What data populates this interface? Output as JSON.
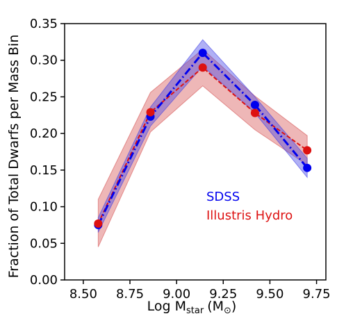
{
  "chart_data": {
    "type": "line",
    "title": "",
    "xlabel": "Log M",
    "xlabel_sub": "star",
    "xlabel_unit": "(M",
    "xlabel_unit_sub": "⊙",
    "xlabel_unit_close": ")",
    "ylabel": "Fraction of Total Dwarfs per Mass Bin",
    "xlim": [
      8.4,
      9.8
    ],
    "ylim": [
      0.0,
      0.35
    ],
    "xticks": [
      "8.50",
      "8.75",
      "9.00",
      "9.25",
      "9.50",
      "9.75"
    ],
    "yticks": [
      "0.00",
      "0.05",
      "0.10",
      "0.15",
      "0.20",
      "0.25",
      "0.30",
      "0.35"
    ],
    "grid": false,
    "legend_position": "lower-right, inside plot",
    "series": [
      {
        "name": "SDSS",
        "color": "#0000ee",
        "band_color": "#3a3ae6",
        "line_style": "dash-dot",
        "x": [
          8.58,
          8.86,
          9.14,
          9.42,
          9.7
        ],
        "y": [
          0.075,
          0.223,
          0.31,
          0.239,
          0.153
        ],
        "y_lower": [
          0.065,
          0.21,
          0.292,
          0.228,
          0.14
        ],
        "y_upper": [
          0.085,
          0.236,
          0.328,
          0.25,
          0.166
        ]
      },
      {
        "name": "Illustris Hydro",
        "color": "#dd1111",
        "band_color": "#d44a4a",
        "line_style": "dashed",
        "x": [
          8.58,
          8.86,
          9.14,
          9.42,
          9.7
        ],
        "y": [
          0.077,
          0.229,
          0.29,
          0.228,
          0.177
        ],
        "y_lower": [
          0.045,
          0.202,
          0.265,
          0.205,
          0.157
        ],
        "y_upper": [
          0.11,
          0.256,
          0.315,
          0.251,
          0.197
        ]
      }
    ]
  }
}
